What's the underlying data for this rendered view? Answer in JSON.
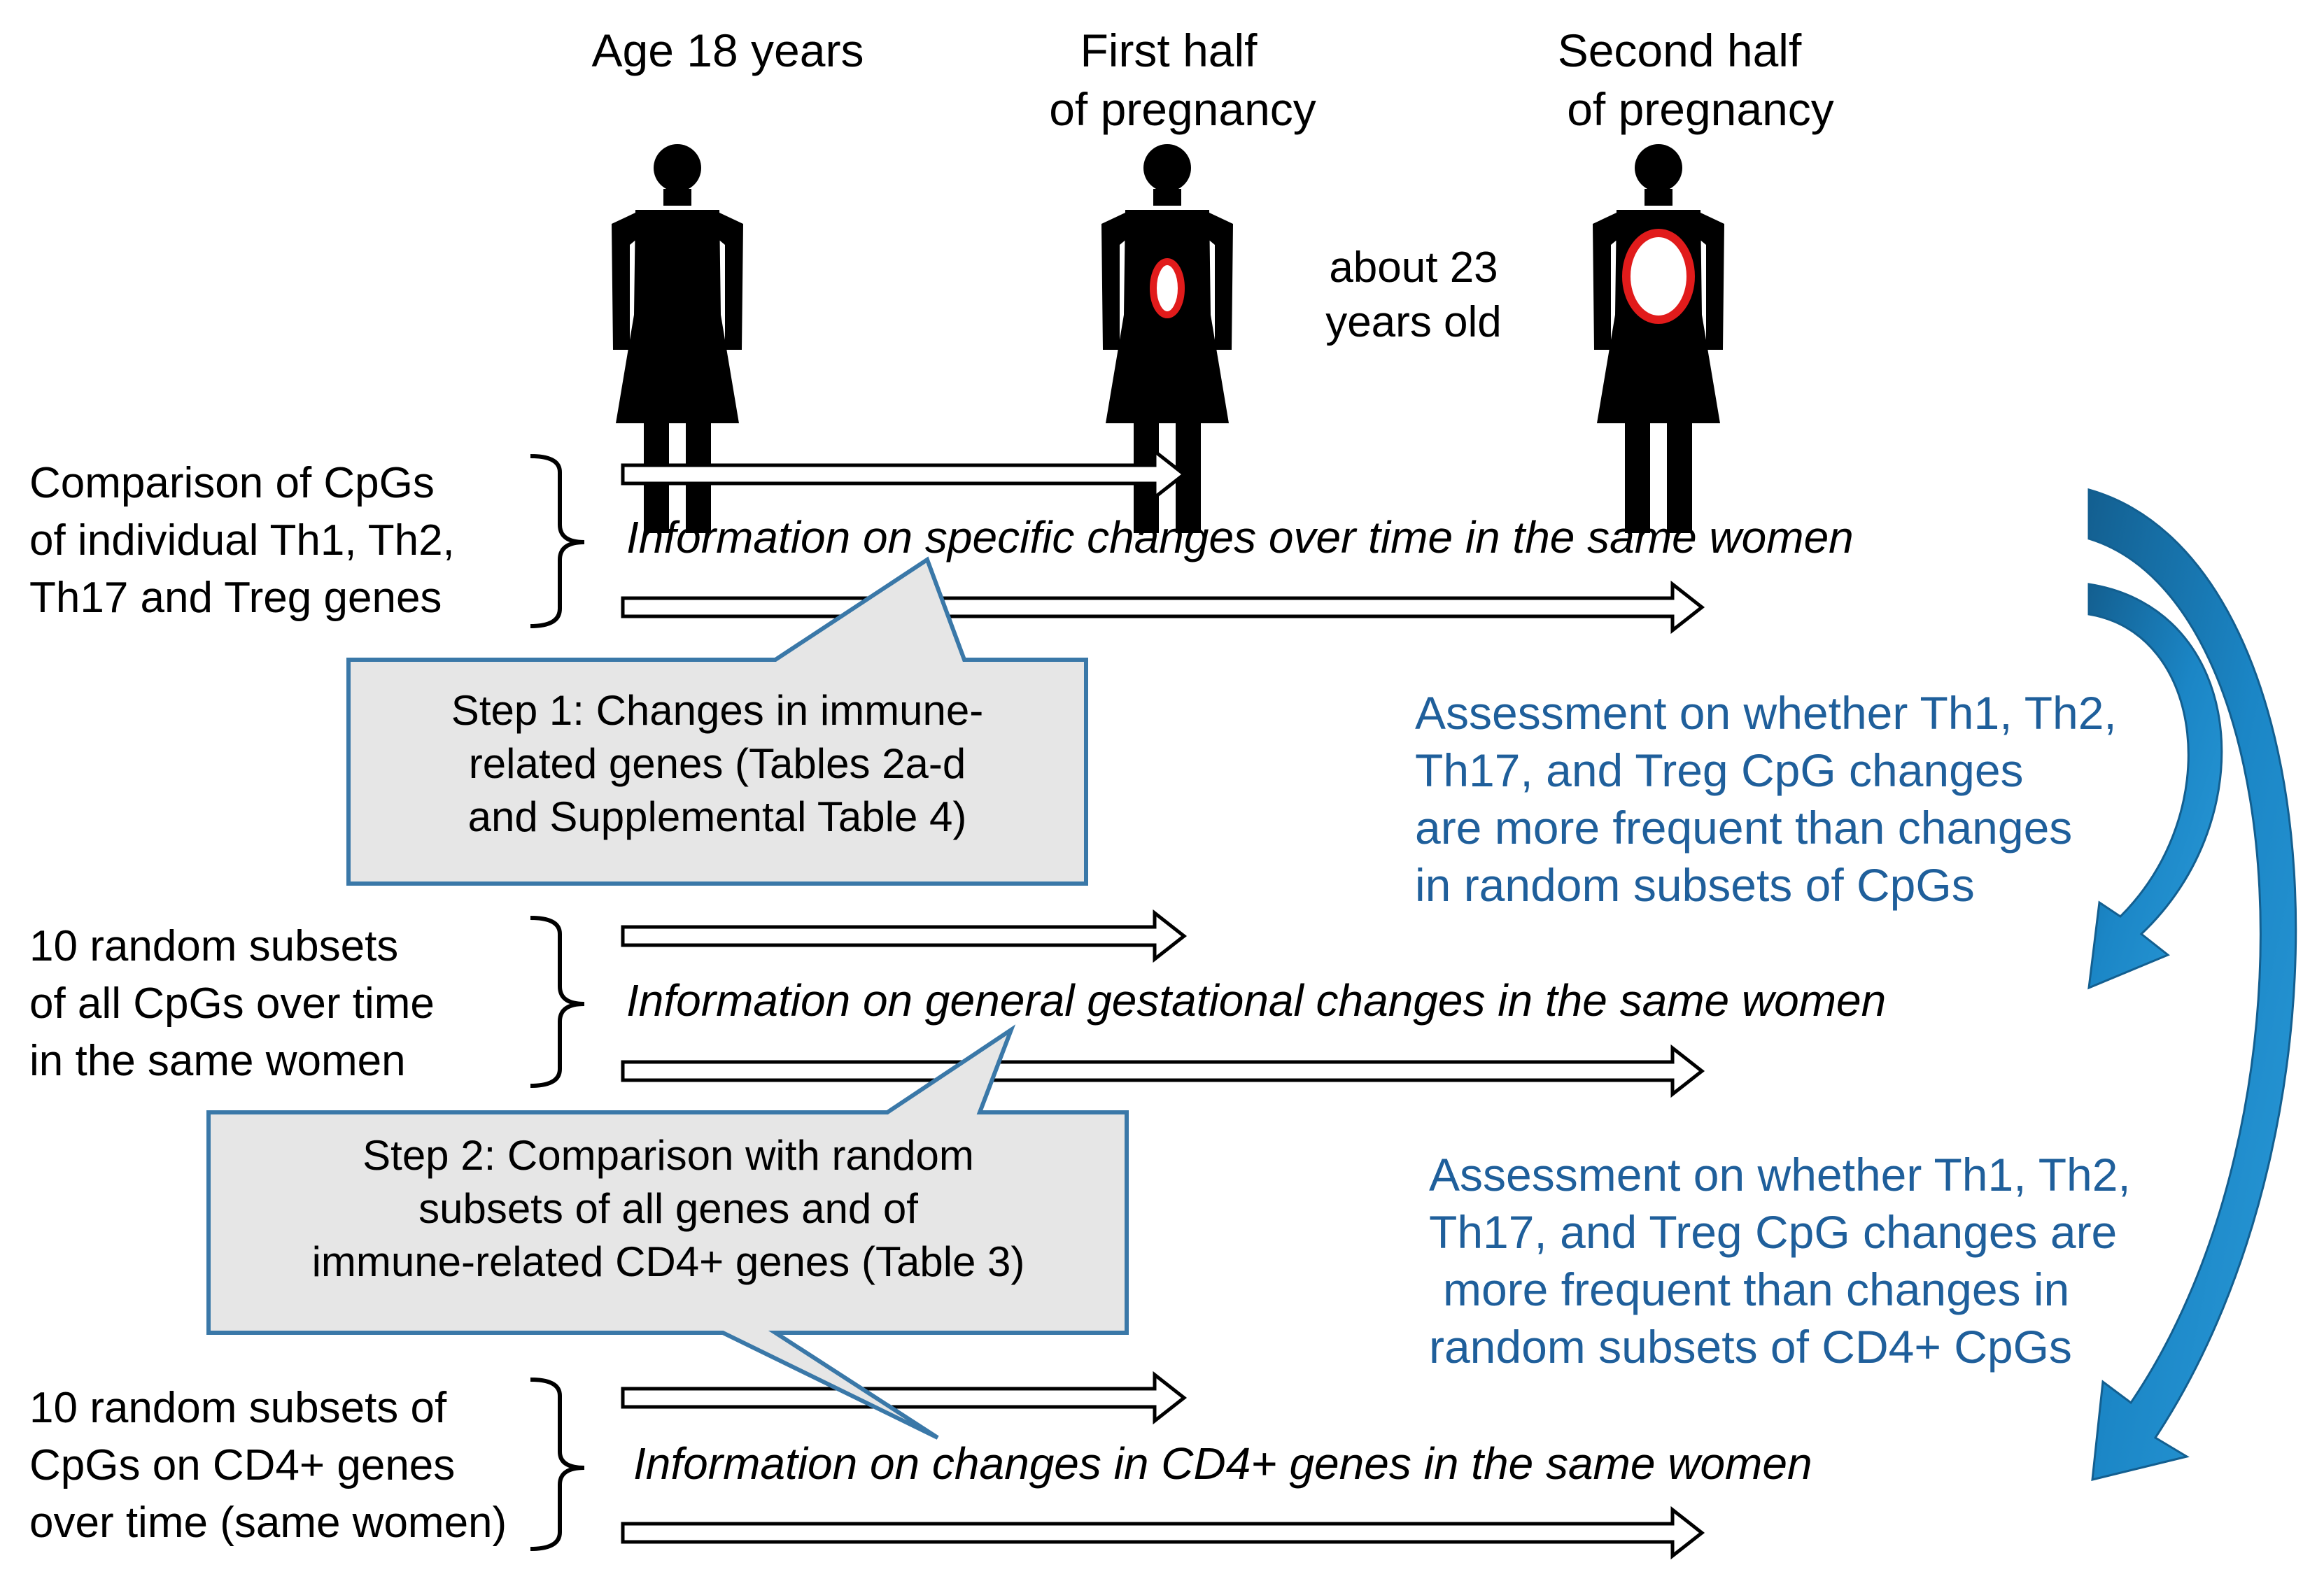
{
  "header": {
    "age18": [
      "Age 18 years"
    ],
    "first_half": [
      "First half",
      "of pregnancy"
    ],
    "second_half": [
      "Second half",
      "of pregnancy"
    ],
    "age_note": [
      "about 23",
      "years old"
    ]
  },
  "rows": [
    {
      "label": [
        "Comparison of CpGs",
        "of individual Th1, Th2,",
        "Th17 and Treg genes"
      ],
      "info": "Information on specific changes over time in the same women"
    },
    {
      "label": [
        "10 random subsets",
        "of all CpGs over time",
        "in the same women"
      ],
      "info": "Information on general gestational changes in the same women"
    },
    {
      "label": [
        "10 random subsets of",
        "CpGs on CD4+ genes",
        "over time (same women)"
      ],
      "info": "Information on changes in CD4+ genes in the same women"
    }
  ],
  "steps": [
    {
      "lines": [
        "Step 1: Changes in immune-",
        "related genes (Tables 2a-d",
        "and Supplemental Table 4)"
      ]
    },
    {
      "lines": [
        "Step 2: Comparison with random",
        "subsets of all genes and of",
        "immune-related CD4+ genes (Table 3)"
      ]
    }
  ],
  "assessments": [
    {
      "lines": [
        "Assessment on whether Th1, Th2,",
        "Th17, and Treg CpG changes",
        "are more frequent than changes",
        "in random subsets of CpGs"
      ]
    },
    {
      "lines": [
        "Assessment on whether Th1, Th2,",
        "Th17, and Treg CpG changes are",
        "more frequent than changes in",
        "random subsets of CD4+ CpGs"
      ]
    }
  ],
  "colors": {
    "text": "#000000",
    "assessment_text": "#1f5f9b",
    "blue_arrow": "#1b86c6",
    "blue_arrow_dark": "#135f90",
    "callout_fill": "#e6e6e6",
    "callout_border": "#3a78a8",
    "belly_ring": "#e11b1b"
  }
}
